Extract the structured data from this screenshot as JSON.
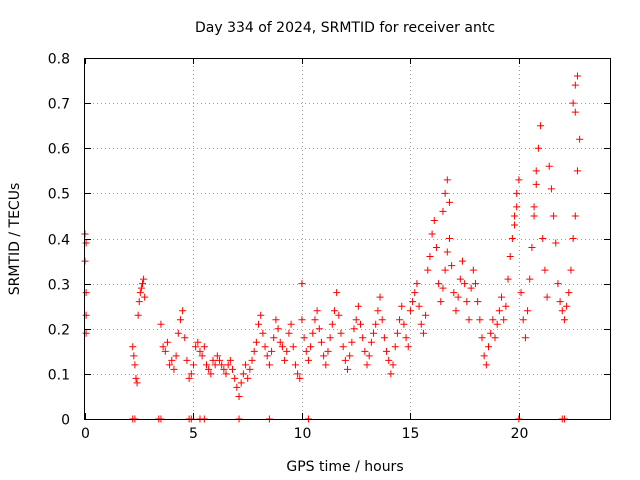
{
  "chart_data": {
    "type": "scatter",
    "title": "Day 334 of 2024, SRMTID for receiver antc",
    "xlabel": "GPS time / hours",
    "ylabel": "SRMTID / TECUs",
    "xlim": [
      0,
      24.2
    ],
    "ylim": [
      0,
      0.8
    ],
    "x_ticks": [
      0,
      5,
      10,
      15,
      20
    ],
    "y_ticks": [
      0,
      0.1,
      0.2,
      0.3,
      0.4,
      0.5,
      0.6,
      0.7,
      0.8
    ],
    "x_tick_labels": [
      "0",
      "5",
      "10",
      "15",
      "20"
    ],
    "y_tick_labels": [
      "0",
      "0.1",
      "0.2",
      "0.3",
      "0.4",
      "0.5",
      "0.6",
      "0.7",
      "0.8"
    ],
    "grid": true,
    "marker": "+",
    "color": "#ff0000",
    "series": [
      {
        "name": "SRMTID",
        "x": [
          0.0,
          0.0,
          0.05,
          0.05,
          0.05,
          0.05,
          2.2,
          2.25,
          2.3,
          2.35,
          2.4,
          2.45,
          2.5,
          2.55,
          2.6,
          2.65,
          2.7,
          2.75,
          3.5,
          3.6,
          3.7,
          3.8,
          3.9,
          4.0,
          4.1,
          4.2,
          4.3,
          4.4,
          4.5,
          4.6,
          4.7,
          4.8,
          4.9,
          5.0,
          5.1,
          5.2,
          5.3,
          5.4,
          5.5,
          5.6,
          5.7,
          5.8,
          5.9,
          6.0,
          6.1,
          6.2,
          6.3,
          6.4,
          6.5,
          6.6,
          6.7,
          6.8,
          6.9,
          7.0,
          7.1,
          7.2,
          7.3,
          7.4,
          7.5,
          7.6,
          7.7,
          7.8,
          7.9,
          8.0,
          8.1,
          8.2,
          8.3,
          8.4,
          8.5,
          8.6,
          8.7,
          8.8,
          8.9,
          9.0,
          9.1,
          9.2,
          9.3,
          9.4,
          9.5,
          9.6,
          9.7,
          9.8,
          9.9,
          10.0,
          10.0,
          10.1,
          10.2,
          10.3,
          10.4,
          10.5,
          10.6,
          10.7,
          10.8,
          10.9,
          11.0,
          11.1,
          11.2,
          11.3,
          11.4,
          11.5,
          11.6,
          11.7,
          11.8,
          11.9,
          12.0,
          12.1,
          12.2,
          12.3,
          12.4,
          12.5,
          12.6,
          12.7,
          12.8,
          12.9,
          13.0,
          13.1,
          13.2,
          13.3,
          13.4,
          13.5,
          13.6,
          13.7,
          13.8,
          13.9,
          14.0,
          14.1,
          14.2,
          14.3,
          14.4,
          14.5,
          14.6,
          14.7,
          14.8,
          14.9,
          15.0,
          15.1,
          15.2,
          15.3,
          15.4,
          15.5,
          15.6,
          15.7,
          15.8,
          15.9,
          16.0,
          16.1,
          16.2,
          16.3,
          16.4,
          16.5,
          16.6,
          16.7,
          16.8,
          16.9,
          17.0,
          16.5,
          16.6,
          16.7,
          16.8,
          17.1,
          17.2,
          17.3,
          17.4,
          17.5,
          17.6,
          17.7,
          17.8,
          17.9,
          18.0,
          18.1,
          18.2,
          18.3,
          18.4,
          18.5,
          18.6,
          18.7,
          18.8,
          18.9,
          19.0,
          19.1,
          19.2,
          19.3,
          19.4,
          19.5,
          19.6,
          19.7,
          19.8,
          19.9,
          20.0,
          19.8,
          19.9,
          20.1,
          20.2,
          20.3,
          20.4,
          20.5,
          20.6,
          20.7,
          20.8,
          20.9,
          21.0,
          21.1,
          21.2,
          21.3,
          20.7,
          20.8,
          21.4,
          21.5,
          21.6,
          21.7,
          21.8,
          21.9,
          22.0,
          22.1,
          22.2,
          22.3,
          22.4,
          22.5,
          22.6,
          22.7,
          22.8,
          22.5,
          22.6,
          22.7,
          22.6,
          2.2,
          2.3,
          3.4,
          3.5,
          4.8,
          4.9,
          5.3,
          5.5,
          7.1,
          8.5,
          10.3,
          20.0,
          22.0,
          22.1
        ],
        "y": [
          0.41,
          0.35,
          0.28,
          0.23,
          0.19,
          0.39,
          0.16,
          0.14,
          0.12,
          0.09,
          0.08,
          0.23,
          0.26,
          0.28,
          0.29,
          0.3,
          0.31,
          0.27,
          0.21,
          0.16,
          0.15,
          0.17,
          0.12,
          0.13,
          0.11,
          0.14,
          0.19,
          0.22,
          0.24,
          0.18,
          0.13,
          0.09,
          0.1,
          0.12,
          0.16,
          0.17,
          0.15,
          0.14,
          0.16,
          0.12,
          0.11,
          0.1,
          0.13,
          0.12,
          0.14,
          0.13,
          0.12,
          0.11,
          0.1,
          0.12,
          0.13,
          0.11,
          0.09,
          0.07,
          0.05,
          0.08,
          0.1,
          0.12,
          0.09,
          0.11,
          0.13,
          0.15,
          0.17,
          0.21,
          0.23,
          0.19,
          0.16,
          0.14,
          0.12,
          0.15,
          0.18,
          0.22,
          0.2,
          0.17,
          0.16,
          0.13,
          0.15,
          0.19,
          0.21,
          0.16,
          0.12,
          0.1,
          0.09,
          0.3,
          0.22,
          0.18,
          0.15,
          0.13,
          0.16,
          0.19,
          0.22,
          0.24,
          0.2,
          0.17,
          0.14,
          0.12,
          0.15,
          0.18,
          0.21,
          0.24,
          0.28,
          0.23,
          0.19,
          0.16,
          0.13,
          0.11,
          0.14,
          0.17,
          0.2,
          0.22,
          0.25,
          0.21,
          0.18,
          0.15,
          0.12,
          0.14,
          0.17,
          0.19,
          0.21,
          0.24,
          0.27,
          0.22,
          0.18,
          0.15,
          0.13,
          0.1,
          0.12,
          0.16,
          0.19,
          0.22,
          0.25,
          0.21,
          0.18,
          0.16,
          0.24,
          0.26,
          0.28,
          0.3,
          0.25,
          0.21,
          0.19,
          0.23,
          0.33,
          0.36,
          0.41,
          0.44,
          0.38,
          0.3,
          0.26,
          0.29,
          0.33,
          0.37,
          0.4,
          0.34,
          0.28,
          0.46,
          0.5,
          0.53,
          0.48,
          0.24,
          0.27,
          0.31,
          0.35,
          0.3,
          0.26,
          0.22,
          0.29,
          0.33,
          0.3,
          0.26,
          0.22,
          0.18,
          0.14,
          0.12,
          0.16,
          0.19,
          0.22,
          0.18,
          0.21,
          0.24,
          0.27,
          0.22,
          0.25,
          0.31,
          0.36,
          0.4,
          0.45,
          0.5,
          0.53,
          0.43,
          0.47,
          0.28,
          0.22,
          0.18,
          0.24,
          0.31,
          0.38,
          0.45,
          0.52,
          0.6,
          0.65,
          0.4,
          0.33,
          0.27,
          0.47,
          0.55,
          0.56,
          0.51,
          0.45,
          0.39,
          0.3,
          0.26,
          0.24,
          0.22,
          0.25,
          0.28,
          0.33,
          0.4,
          0.45,
          0.55,
          0.62,
          0.7,
          0.74,
          0.76,
          0.68,
          0.0,
          0.0,
          0.0,
          0.0,
          0.0,
          0.0,
          0.0,
          0.0,
          0.0,
          0.0,
          0.0,
          0.0,
          0.0,
          0.0
        ]
      }
    ]
  }
}
